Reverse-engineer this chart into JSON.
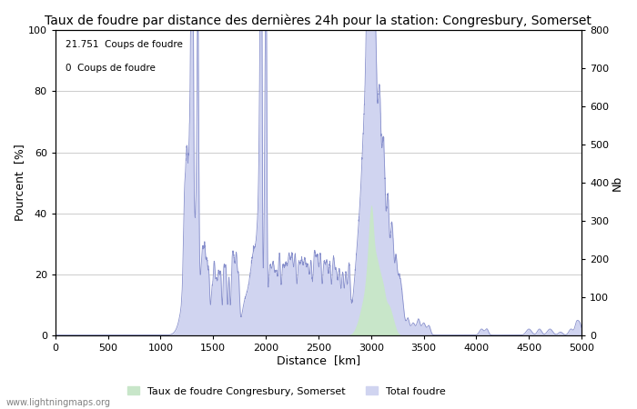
{
  "title": "Taux de foudre par distance des dernières 24h pour la station: Congresbury, Somerset",
  "xlabel": "Distance  [km]",
  "ylabel_left": "Pourcent  [%]",
  "ylabel_right": "Nb",
  "annotation_line1": "21.751  Coups de foudre",
  "annotation_line2": "0  Coups de foudre",
  "legend_label1": "Taux de foudre Congresbury, Somerset",
  "legend_label2": "Total foudre",
  "watermark": "www.lightningmaps.org",
  "xlim": [
    0,
    5000
  ],
  "ylim_left": [
    0,
    100
  ],
  "ylim_right": [
    0,
    800
  ],
  "xticks": [
    0,
    500,
    1000,
    1500,
    2000,
    2500,
    3000,
    3500,
    4000,
    4500,
    5000
  ],
  "yticks_left": [
    0,
    20,
    40,
    60,
    80,
    100
  ],
  "yticks_right": [
    0,
    100,
    200,
    300,
    400,
    500,
    600,
    700,
    800
  ],
  "fill_color_green": "#c8e6c9",
  "fill_color_blue": "#d0d4f0",
  "line_color": "#8890cc",
  "background_color": "#ffffff",
  "grid_color": "#cccccc",
  "title_fontsize": 10,
  "label_fontsize": 9,
  "tick_fontsize": 8
}
